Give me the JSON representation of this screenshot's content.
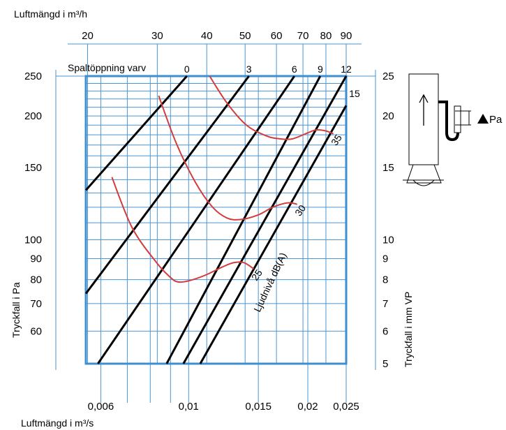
{
  "chart_data": {
    "type": "line",
    "title": "",
    "top_axis": {
      "label": "Luftmängd i m³/h",
      "ticks": [
        "20",
        "30",
        "40",
        "50",
        "60",
        "70",
        "80",
        "90"
      ],
      "tick_values": [
        20,
        30,
        40,
        50,
        60,
        70,
        80,
        90
      ]
    },
    "bottom_axis": {
      "label": "Luftmängd i m³/s",
      "ticks": [
        "0,006",
        "0,01",
        "0,015",
        "0,02",
        "0,025"
      ],
      "tick_values": [
        0.006,
        0.01,
        0.015,
        0.02,
        0.025
      ],
      "xlim": [
        0.0055,
        0.025
      ],
      "scale": "log"
    },
    "left_axis": {
      "label": "Tryckfall i Pa",
      "ticks": [
        "250",
        "200",
        "150",
        "100",
        "90",
        "80",
        "70",
        "60"
      ],
      "tick_values": [
        250,
        200,
        150,
        100,
        90,
        80,
        70,
        60
      ],
      "ylim": [
        50,
        250
      ],
      "scale": "log"
    },
    "right_axis": {
      "label": "Tryckfall i mm VP",
      "ticks": [
        "25",
        "20",
        "15",
        "10",
        "9",
        "8",
        "7",
        "6",
        "5"
      ],
      "tick_values": [
        25,
        20,
        15,
        10,
        9,
        8,
        7,
        6,
        5
      ]
    },
    "opening_title": "Spaltöppning varv",
    "opening_lines": [
      {
        "label": "0",
        "points": [
          [
            0.0055,
            132
          ],
          [
            0.0099,
            250
          ]
        ]
      },
      {
        "label": "3",
        "points": [
          [
            0.0055,
            74
          ],
          [
            0.0142,
            250
          ]
        ]
      },
      {
        "label": "6",
        "points": [
          [
            0.0059,
            50
          ],
          [
            0.0185,
            250
          ]
        ]
      },
      {
        "label": "9",
        "points": [
          [
            0.0088,
            50
          ],
          [
            0.0215,
            250
          ]
        ]
      },
      {
        "label": "12",
        "points": [
          [
            0.0097,
            50
          ],
          [
            0.025,
            250
          ]
        ]
      },
      {
        "label": "15",
        "points": [
          [
            0.0107,
            50
          ],
          [
            0.025,
            212
          ]
        ]
      }
    ],
    "sound_title": "Ljudnivå dB(A)",
    "sound_curves": [
      {
        "label": "25",
        "points": [
          [
            0.0064,
            142
          ],
          [
            0.0072,
            107
          ],
          [
            0.0083,
            88
          ],
          [
            0.009,
            81
          ],
          [
            0.0094,
            79
          ],
          [
            0.01,
            79.5
          ],
          [
            0.011,
            82
          ],
          [
            0.0122,
            86
          ],
          [
            0.013,
            88
          ],
          [
            0.0138,
            88
          ],
          [
            0.0146,
            85
          ]
        ]
      },
      {
        "label": "30",
        "points": [
          [
            0.0084,
            224
          ],
          [
            0.0093,
            172
          ],
          [
            0.0104,
            138
          ],
          [
            0.0115,
            120
          ],
          [
            0.0125,
            113
          ],
          [
            0.0135,
            112
          ],
          [
            0.015,
            115
          ],
          [
            0.0163,
            120
          ],
          [
            0.0178,
            123
          ],
          [
            0.0188,
            122
          ]
        ]
      },
      {
        "label": "35",
        "points": [
          [
            0.0113,
            250
          ],
          [
            0.0125,
            215
          ],
          [
            0.014,
            190
          ],
          [
            0.0157,
            179
          ],
          [
            0.017,
            176
          ],
          [
            0.0183,
            176
          ],
          [
            0.02,
            182
          ],
          [
            0.021,
            185
          ],
          [
            0.0222,
            184
          ],
          [
            0.0232,
            181
          ]
        ]
      }
    ]
  },
  "inset": {
    "pressure_label": "Pa",
    "arrow_icon": "up-arrow",
    "triangle_icon": "triangle-icon"
  }
}
